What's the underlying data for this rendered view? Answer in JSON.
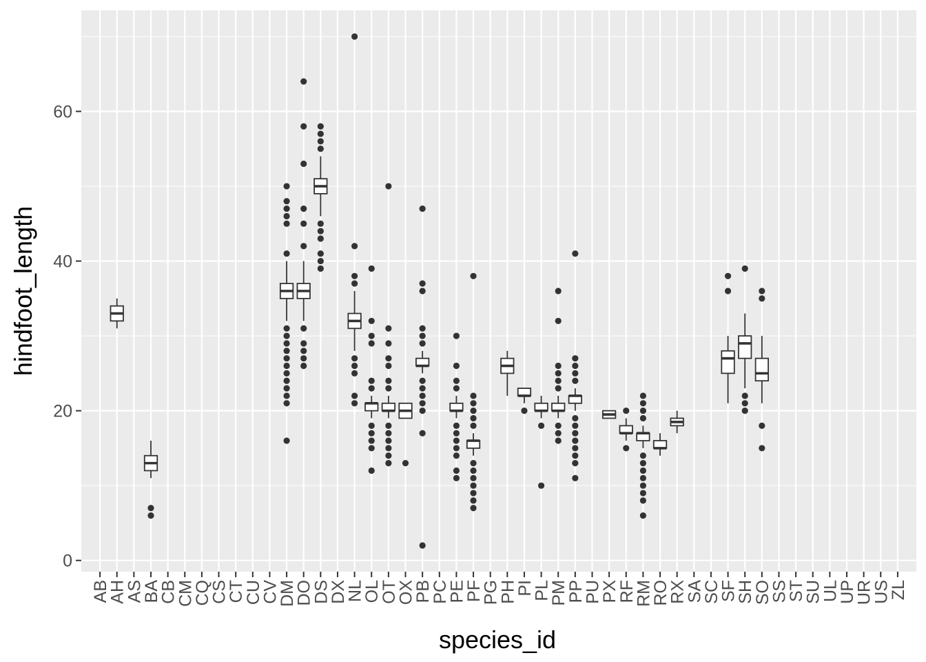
{
  "chart_data": {
    "type": "boxplot",
    "xlabel": "species_id",
    "ylabel": "hindfoot_length",
    "ylim": [
      -1.5,
      73.5
    ],
    "y_ticks": [
      0,
      20,
      40,
      60
    ],
    "grid": true,
    "background": "#ebebeb",
    "grid_color": "#ffffff",
    "box_fill": "#ffffff",
    "line_color": "#333333",
    "categories": [
      "AB",
      "AH",
      "AS",
      "BA",
      "CB",
      "CM",
      "CQ",
      "CS",
      "CT",
      "CU",
      "CV",
      "DM",
      "DO",
      "DS",
      "DX",
      "NL",
      "OL",
      "OT",
      "OX",
      "PB",
      "PC",
      "PE",
      "PF",
      "PG",
      "PH",
      "PI",
      "PL",
      "PM",
      "PP",
      "PU",
      "PX",
      "RF",
      "RM",
      "RO",
      "RX",
      "SA",
      "SC",
      "SF",
      "SH",
      "SO",
      "SS",
      "ST",
      "SU",
      "UL",
      "UP",
      "UR",
      "US",
      "ZL"
    ],
    "boxes": [
      {
        "category": "AH",
        "min": 31,
        "q1": 32,
        "median": 33,
        "q3": 34,
        "max": 35,
        "outliers": []
      },
      {
        "category": "BA",
        "min": 11,
        "q1": 12,
        "median": 13,
        "q3": 14,
        "max": 16,
        "outliers": [
          6,
          7
        ]
      },
      {
        "category": "DM",
        "min": 32,
        "q1": 35,
        "median": 36,
        "q3": 37,
        "max": 40,
        "outliers": [
          16,
          21,
          22,
          23,
          24,
          25,
          26,
          27,
          28,
          29,
          30,
          31,
          41,
          45,
          46,
          47,
          48,
          50
        ]
      },
      {
        "category": "DO",
        "min": 32,
        "q1": 35,
        "median": 36,
        "q3": 37,
        "max": 40,
        "outliers": [
          26,
          27,
          28,
          29,
          31,
          42,
          45,
          47,
          53,
          58,
          64
        ]
      },
      {
        "category": "DS",
        "min": 46,
        "q1": 49,
        "median": 50,
        "q3": 51,
        "max": 54,
        "outliers": [
          39,
          40,
          41,
          43,
          44,
          45,
          55,
          56,
          57,
          58
        ]
      },
      {
        "category": "NL",
        "min": 28,
        "q1": 31,
        "median": 32,
        "q3": 33,
        "max": 36,
        "outliers": [
          21,
          22,
          25,
          26,
          27,
          37,
          38,
          42,
          70
        ]
      },
      {
        "category": "OL",
        "min": 19,
        "q1": 20,
        "median": 21,
        "q3": 21,
        "max": 22,
        "outliers": [
          12,
          15,
          16,
          17,
          18,
          23,
          24,
          29,
          30,
          32,
          39
        ]
      },
      {
        "category": "OT",
        "min": 19,
        "q1": 20,
        "median": 20,
        "q3": 21,
        "max": 22,
        "outliers": [
          13,
          14,
          15,
          16,
          17,
          18,
          23,
          24,
          26,
          27,
          29,
          31,
          50
        ]
      },
      {
        "category": "OX",
        "min": 19,
        "q1": 19,
        "median": 20,
        "q3": 21,
        "max": 21,
        "outliers": [
          13
        ]
      },
      {
        "category": "PB",
        "min": 25,
        "q1": 26,
        "median": 26,
        "q3": 27,
        "max": 28,
        "outliers": [
          2,
          17,
          20,
          21,
          22,
          23,
          24,
          29,
          30,
          31,
          36,
          37,
          47
        ]
      },
      {
        "category": "PE",
        "min": 19,
        "q1": 20,
        "median": 20,
        "q3": 21,
        "max": 22,
        "outliers": [
          11,
          12,
          14,
          15,
          16,
          17,
          18,
          23,
          24,
          26,
          30
        ]
      },
      {
        "category": "PF",
        "min": 14,
        "q1": 15,
        "median": 16,
        "q3": 16,
        "max": 17,
        "outliers": [
          7,
          8,
          9,
          10,
          11,
          12,
          13,
          18,
          19,
          20,
          21,
          22,
          38
        ]
      },
      {
        "category": "PH",
        "min": 22,
        "q1": 25,
        "median": 26,
        "q3": 27,
        "max": 28,
        "outliers": []
      },
      {
        "category": "PI",
        "min": 21,
        "q1": 22,
        "median": 22,
        "q3": 23,
        "max": 23,
        "outliers": [
          20
        ]
      },
      {
        "category": "PL",
        "min": 19,
        "q1": 20,
        "median": 20,
        "q3": 21,
        "max": 22,
        "outliers": [
          10,
          18
        ]
      },
      {
        "category": "PM",
        "min": 19,
        "q1": 20,
        "median": 20,
        "q3": 21,
        "max": 22,
        "outliers": [
          16,
          17,
          18,
          23,
          24,
          25,
          26,
          32,
          36
        ]
      },
      {
        "category": "PP",
        "min": 20,
        "q1": 21,
        "median": 22,
        "q3": 22,
        "max": 23,
        "outliers": [
          11,
          13,
          14,
          15,
          16,
          17,
          18,
          19,
          24,
          25,
          26,
          27,
          41
        ]
      },
      {
        "category": "PX",
        "min": 19,
        "q1": 19,
        "median": 19.5,
        "q3": 20,
        "max": 20,
        "outliers": []
      },
      {
        "category": "RF",
        "min": 16,
        "q1": 17,
        "median": 17,
        "q3": 18,
        "max": 19,
        "outliers": [
          15,
          20
        ]
      },
      {
        "category": "RM",
        "min": 15,
        "q1": 16,
        "median": 17,
        "q3": 17,
        "max": 18,
        "outliers": [
          6,
          8,
          9,
          10,
          11,
          12,
          13,
          14,
          19,
          20,
          21,
          22
        ]
      },
      {
        "category": "RO",
        "min": 14,
        "q1": 15,
        "median": 15,
        "q3": 16,
        "max": 17,
        "outliers": []
      },
      {
        "category": "RX",
        "min": 17,
        "q1": 18,
        "median": 18.5,
        "q3": 19,
        "max": 20,
        "outliers": []
      },
      {
        "category": "SF",
        "min": 21,
        "q1": 25,
        "median": 27,
        "q3": 28,
        "max": 30,
        "outliers": [
          36,
          38
        ]
      },
      {
        "category": "SH",
        "min": 23,
        "q1": 27,
        "median": 29,
        "q3": 30,
        "max": 33,
        "outliers": [
          20,
          21,
          22,
          39
        ]
      },
      {
        "category": "SO",
        "min": 21,
        "q1": 24,
        "median": 25,
        "q3": 27,
        "max": 30,
        "outliers": [
          15,
          18,
          35,
          36
        ]
      }
    ]
  }
}
